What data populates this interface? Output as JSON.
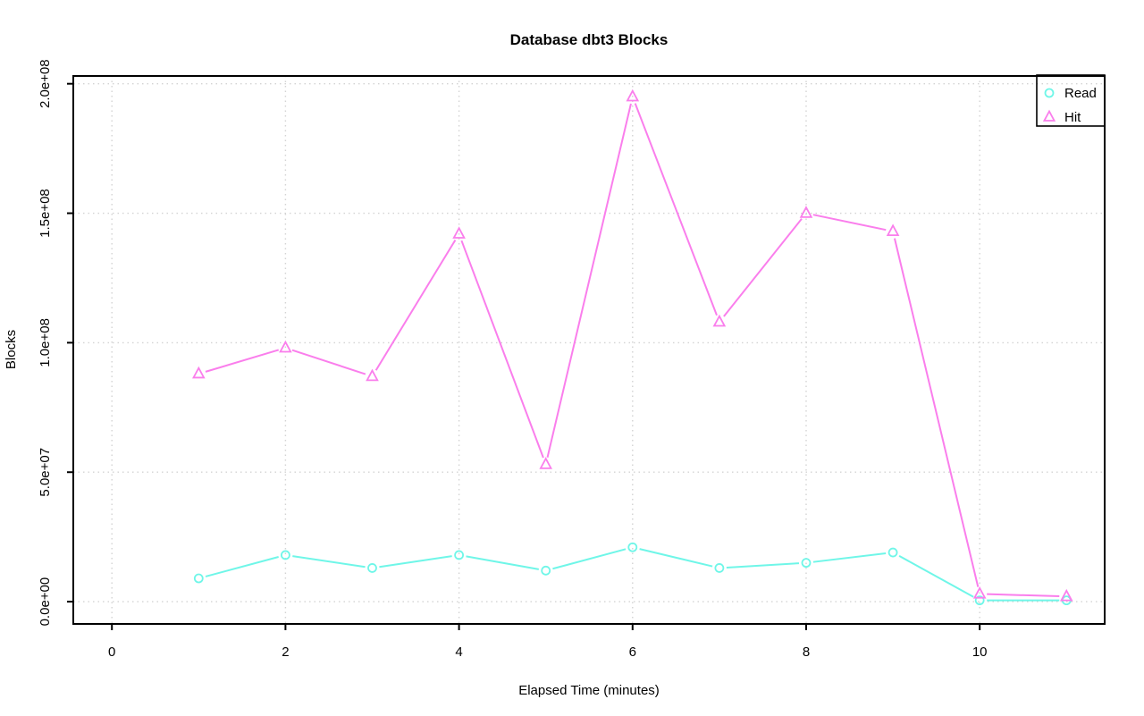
{
  "chart_data": {
    "type": "line",
    "title": "Database dbt3 Blocks",
    "xlabel": "Elapsed Time (minutes)",
    "ylabel": "Blocks",
    "x": [
      1,
      2,
      3,
      4,
      5,
      6,
      7,
      8,
      9,
      10,
      11
    ],
    "series": [
      {
        "name": "Read",
        "marker": "circle",
        "color": "#6FF6E8",
        "values": [
          9000000,
          18000000,
          13000000,
          18000000,
          12000000,
          21000000,
          13000000,
          15000000,
          19000000,
          500000,
          500000
        ]
      },
      {
        "name": "Hit",
        "marker": "triangle",
        "color": "#FA7EEC",
        "values": [
          88000000,
          98000000,
          87000000,
          142000000,
          53000000,
          195000000,
          108000000,
          150000000,
          143000000,
          3000000,
          2000000
        ]
      }
    ],
    "x_ticks": {
      "values": [
        0,
        2,
        4,
        6,
        8,
        10
      ],
      "labels": [
        "0",
        "2",
        "4",
        "6",
        "8",
        "10"
      ]
    },
    "y_ticks": {
      "values": [
        0,
        50000000,
        100000000,
        150000000,
        200000000
      ],
      "labels": [
        "0.0e+00",
        "5.0e+07",
        "1.0e+08",
        "1.5e+08",
        "2.0e+08"
      ]
    },
    "xlim": [
      -0.445,
      11.44
    ],
    "ylim": [
      -8600000,
      203000000
    ],
    "grid": true,
    "grid_color": "#D3D3D3",
    "legend_position": "topright",
    "legend": [
      "Read",
      "Hit"
    ]
  }
}
